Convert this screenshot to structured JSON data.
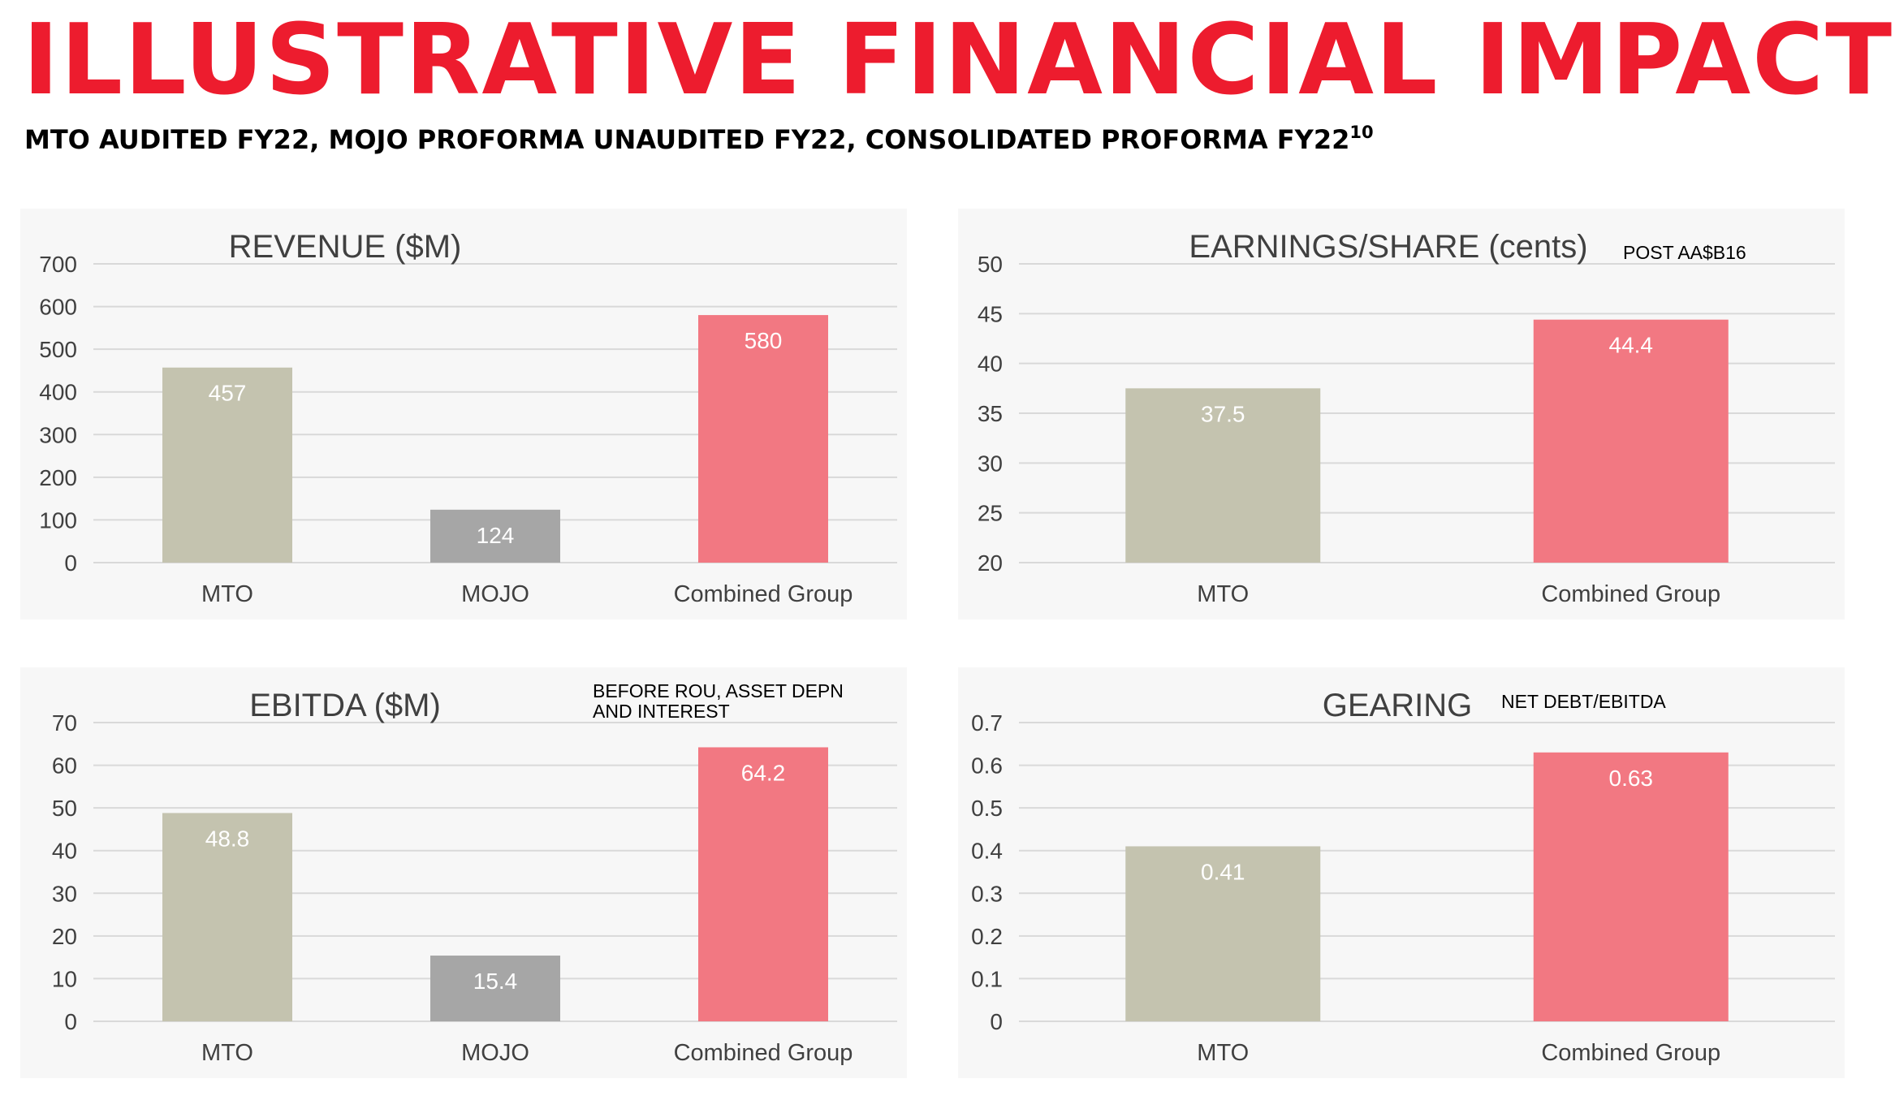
{
  "header": {
    "title": "ILLUSTRATIVE FINANCIAL IMPACT",
    "subtitle": "MTO AUDITED FY22, MOJO PROFORMA UNAUDITED FY22, CONSOLIDATED PROFORMA FY22",
    "subtitle_sup": "10"
  },
  "colors": {
    "title": "#ed1c2e",
    "mto": "#c4c3af",
    "mojo": "#a6a6a6",
    "combined": "#f27882"
  },
  "chart_data": [
    {
      "type": "bar",
      "title": "REVENUE ($M)",
      "note": [],
      "categories": [
        "MTO",
        "MOJO",
        "Combined Group"
      ],
      "values": [
        457,
        124,
        580
      ],
      "data_labels": [
        "457",
        "124",
        "580"
      ],
      "ylim": [
        0,
        700
      ],
      "yticks": [
        "0",
        "100",
        "200",
        "300",
        "400",
        "500",
        "600",
        "700"
      ],
      "grid": true
    },
    {
      "type": "bar",
      "title": "EARNINGS/SHARE (cents)",
      "note": [
        "POST AA$B16"
      ],
      "categories": [
        "MTO",
        "Combined Group"
      ],
      "values": [
        37.5,
        44.4
      ],
      "data_labels": [
        "37.5",
        "44.4"
      ],
      "ylim": [
        20,
        50
      ],
      "yticks": [
        "20",
        "25",
        "30",
        "35",
        "40",
        "45",
        "50"
      ],
      "grid": true
    },
    {
      "type": "bar",
      "title": "EBITDA ($M)",
      "note": [
        "BEFORE ROU, ASSET DEPN",
        "AND INTEREST"
      ],
      "categories": [
        "MTO",
        "MOJO",
        "Combined Group"
      ],
      "values": [
        48.8,
        15.4,
        64.2
      ],
      "data_labels": [
        "48.8",
        "15.4",
        "64.2"
      ],
      "ylim": [
        0,
        70
      ],
      "yticks": [
        "0",
        "10",
        "20",
        "30",
        "40",
        "50",
        "60",
        "70"
      ],
      "grid": true
    },
    {
      "type": "bar",
      "title": "GEARING",
      "note": [
        "NET DEBT/EBITDA"
      ],
      "categories": [
        "MTO",
        "Combined Group"
      ],
      "values": [
        0.41,
        0.63
      ],
      "data_labels": [
        "0.41",
        "0.63"
      ],
      "ylim": [
        0,
        0.7
      ],
      "yticks": [
        "0",
        "0.1",
        "0.2",
        "0.3",
        "0.4",
        "0.5",
        "0.6",
        "0.7"
      ],
      "grid": true
    }
  ]
}
